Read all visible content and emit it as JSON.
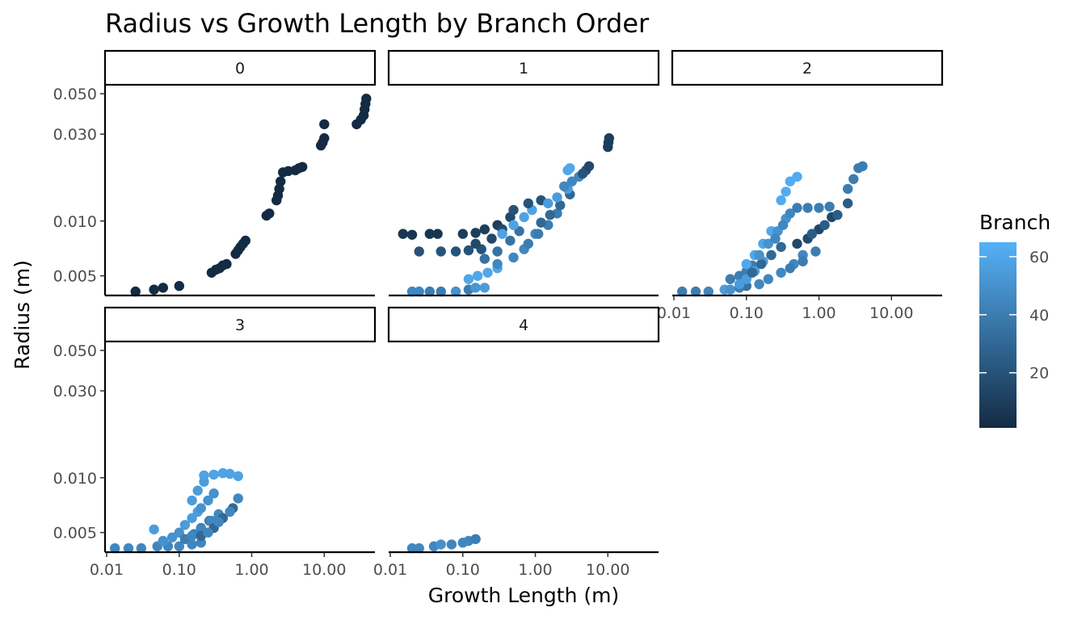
{
  "chart_data": {
    "type": "scatter",
    "title": "Radius vs Growth Length by Branch Order",
    "xlabel": "Growth Length (m)",
    "ylabel": "Radius (m)",
    "x_scale": "log10",
    "y_scale": "log10",
    "xlim": [
      0.0095,
      50
    ],
    "ylim": [
      0.0039,
      0.056
    ],
    "x_ticks": [
      0.01,
      0.1,
      1,
      10
    ],
    "x_tick_labels": [
      "0.01",
      "0.10",
      "1.00",
      "10.00"
    ],
    "y_ticks": [
      0.005,
      0.01,
      0.03,
      0.05
    ],
    "y_tick_labels": [
      "0.005",
      "0.010",
      "0.030",
      "0.050"
    ],
    "facet_by": "Branch Order",
    "grid": false,
    "legend": {
      "title": "Branch",
      "type": "colorbar",
      "range": [
        1,
        65
      ],
      "ticks": [
        20,
        40,
        60
      ],
      "tick_labels": [
        "20",
        "40",
        "60"
      ],
      "low_color": "#132B43",
      "high_color": "#56B1F7",
      "placement": "right"
    },
    "panels": [
      {
        "label": "0",
        "points": [
          [
            0.025,
            0.0041,
            1
          ],
          [
            0.045,
            0.0042,
            1
          ],
          [
            0.06,
            0.0043,
            1
          ],
          [
            0.1,
            0.0044,
            1
          ],
          [
            0.28,
            0.0052,
            1
          ],
          [
            0.32,
            0.0054,
            1
          ],
          [
            0.36,
            0.0055,
            1
          ],
          [
            0.4,
            0.0057,
            1
          ],
          [
            0.45,
            0.0058,
            1
          ],
          [
            0.6,
            0.0066,
            1
          ],
          [
            0.65,
            0.0069,
            1
          ],
          [
            0.7,
            0.0072,
            1
          ],
          [
            0.76,
            0.0075,
            1
          ],
          [
            0.82,
            0.0078,
            1
          ],
          [
            1.6,
            0.0107,
            1
          ],
          [
            1.75,
            0.011,
            1
          ],
          [
            2.2,
            0.013,
            1
          ],
          [
            2.3,
            0.0138,
            1
          ],
          [
            2.4,
            0.015,
            1
          ],
          [
            2.5,
            0.0165,
            1
          ],
          [
            2.7,
            0.0185,
            1
          ],
          [
            3.2,
            0.0188,
            1
          ],
          [
            4,
            0.019,
            1
          ],
          [
            4.5,
            0.0195,
            1
          ],
          [
            5,
            0.0198,
            1
          ],
          [
            9,
            0.026,
            1
          ],
          [
            9.5,
            0.027,
            1
          ],
          [
            10,
            0.0285,
            1
          ],
          [
            10,
            0.034,
            1
          ],
          [
            28,
            0.034,
            1
          ],
          [
            32,
            0.036,
            1
          ],
          [
            35,
            0.038,
            1
          ],
          [
            36,
            0.041,
            1
          ],
          [
            37,
            0.044,
            1
          ],
          [
            38,
            0.047,
            1
          ]
        ]
      },
      {
        "label": "1",
        "points": [
          [
            0.015,
            0.0085,
            6
          ],
          [
            0.02,
            0.0084,
            6
          ],
          [
            0.035,
            0.0085,
            6
          ],
          [
            0.045,
            0.0085,
            6
          ],
          [
            0.02,
            0.0041,
            45
          ],
          [
            0.025,
            0.0041,
            45
          ],
          [
            0.035,
            0.0041,
            40
          ],
          [
            0.05,
            0.0041,
            40
          ],
          [
            0.08,
            0.0041,
            50
          ],
          [
            0.12,
            0.0042,
            40
          ],
          [
            0.15,
            0.0043,
            52
          ],
          [
            0.2,
            0.0043,
            55
          ],
          [
            0.025,
            0.0068,
            20
          ],
          [
            0.05,
            0.0068,
            20
          ],
          [
            0.08,
            0.0068,
            20
          ],
          [
            0.12,
            0.0069,
            20
          ],
          [
            0.18,
            0.007,
            20
          ],
          [
            0.1,
            0.0085,
            10
          ],
          [
            0.15,
            0.0086,
            10
          ],
          [
            0.2,
            0.009,
            10
          ],
          [
            0.3,
            0.0095,
            10
          ],
          [
            0.12,
            0.0048,
            60
          ],
          [
            0.16,
            0.005,
            60
          ],
          [
            0.22,
            0.0052,
            60
          ],
          [
            0.3,
            0.0055,
            60
          ],
          [
            0.15,
            0.0075,
            15
          ],
          [
            0.25,
            0.008,
            15
          ],
          [
            0.35,
            0.009,
            15
          ],
          [
            0.45,
            0.0105,
            15
          ],
          [
            0.2,
            0.0062,
            35
          ],
          [
            0.3,
            0.0068,
            35
          ],
          [
            0.45,
            0.0078,
            35
          ],
          [
            0.6,
            0.0088,
            35
          ],
          [
            0.3,
            0.0058,
            45
          ],
          [
            0.5,
            0.0063,
            45
          ],
          [
            0.7,
            0.007,
            45
          ],
          [
            1.0,
            0.0085,
            45
          ],
          [
            0.35,
            0.0085,
            58
          ],
          [
            0.5,
            0.0095,
            58
          ],
          [
            0.7,
            0.0105,
            58
          ],
          [
            0.9,
            0.0115,
            58
          ],
          [
            0.5,
            0.0115,
            20
          ],
          [
            0.8,
            0.0125,
            20
          ],
          [
            1.2,
            0.013,
            20
          ],
          [
            0.8,
            0.0075,
            40
          ],
          [
            1.1,
            0.0085,
            40
          ],
          [
            1.5,
            0.0095,
            40
          ],
          [
            2.0,
            0.011,
            40
          ],
          [
            1.2,
            0.0098,
            30
          ],
          [
            1.6,
            0.0108,
            30
          ],
          [
            2.2,
            0.0122,
            30
          ],
          [
            3.0,
            0.014,
            30
          ],
          [
            1.5,
            0.0125,
            55
          ],
          [
            2.0,
            0.0135,
            55
          ],
          [
            2.8,
            0.015,
            55
          ],
          [
            2.5,
            0.0155,
            45
          ],
          [
            3.2,
            0.0165,
            45
          ],
          [
            4.0,
            0.0175,
            45
          ],
          [
            2.8,
            0.019,
            60
          ],
          [
            3.0,
            0.0195,
            60
          ],
          [
            4.5,
            0.0182,
            20
          ],
          [
            5,
            0.019,
            20
          ],
          [
            5.5,
            0.02,
            15
          ],
          [
            10,
            0.0255,
            10
          ],
          [
            10.2,
            0.027,
            10
          ],
          [
            10.4,
            0.0285,
            10
          ]
        ]
      },
      {
        "label": "2",
        "points": [
          [
            0.013,
            0.0041,
            40
          ],
          [
            0.02,
            0.0041,
            40
          ],
          [
            0.03,
            0.0041,
            45
          ],
          [
            0.05,
            0.0042,
            55
          ],
          [
            0.06,
            0.0042,
            50
          ],
          [
            0.08,
            0.0043,
            40
          ],
          [
            0.1,
            0.0044,
            35
          ],
          [
            0.15,
            0.0045,
            45
          ],
          [
            0.06,
            0.0048,
            40
          ],
          [
            0.08,
            0.005,
            40
          ],
          [
            0.1,
            0.0053,
            40
          ],
          [
            0.12,
            0.0057,
            40
          ],
          [
            0.08,
            0.0045,
            55
          ],
          [
            0.1,
            0.0048,
            55
          ],
          [
            0.13,
            0.0053,
            55
          ],
          [
            0.17,
            0.006,
            55
          ],
          [
            0.1,
            0.0058,
            60
          ],
          [
            0.13,
            0.0065,
            60
          ],
          [
            0.17,
            0.0075,
            60
          ],
          [
            0.22,
            0.0088,
            60
          ],
          [
            0.12,
            0.0052,
            30
          ],
          [
            0.16,
            0.0058,
            30
          ],
          [
            0.22,
            0.0065,
            30
          ],
          [
            0.3,
            0.0072,
            30
          ],
          [
            0.15,
            0.0065,
            50
          ],
          [
            0.2,
            0.0075,
            50
          ],
          [
            0.27,
            0.0088,
            50
          ],
          [
            0.35,
            0.0103,
            50
          ],
          [
            0.2,
            0.0048,
            45
          ],
          [
            0.3,
            0.0052,
            45
          ],
          [
            0.45,
            0.0058,
            45
          ],
          [
            0.6,
            0.0065,
            45
          ],
          [
            0.25,
            0.008,
            45
          ],
          [
            0.32,
            0.0095,
            45
          ],
          [
            0.4,
            0.011,
            45
          ],
          [
            0.5,
            0.0118,
            40
          ],
          [
            0.7,
            0.0118,
            40
          ],
          [
            1.0,
            0.0118,
            40
          ],
          [
            1.4,
            0.012,
            40
          ],
          [
            0.3,
            0.013,
            62
          ],
          [
            0.35,
            0.0145,
            62
          ],
          [
            0.4,
            0.0165,
            62
          ],
          [
            0.5,
            0.0175,
            62
          ],
          [
            0.5,
            0.0075,
            15
          ],
          [
            0.7,
            0.008,
            15
          ],
          [
            1.0,
            0.009,
            15
          ],
          [
            1.5,
            0.0105,
            15
          ],
          [
            0.4,
            0.0055,
            40
          ],
          [
            0.6,
            0.006,
            40
          ],
          [
            0.9,
            0.0068,
            40
          ],
          [
            0.8,
            0.0085,
            25
          ],
          [
            1.2,
            0.0095,
            25
          ],
          [
            1.8,
            0.0108,
            25
          ],
          [
            2.5,
            0.0125,
            25
          ],
          [
            2.5,
            0.015,
            40
          ],
          [
            3.0,
            0.017,
            40
          ],
          [
            3.5,
            0.0195,
            40
          ],
          [
            4.0,
            0.02,
            40
          ]
        ]
      },
      {
        "label": "3",
        "points": [
          [
            0.013,
            0.0041,
            45
          ],
          [
            0.02,
            0.0041,
            45
          ],
          [
            0.03,
            0.0041,
            45
          ],
          [
            0.05,
            0.0042,
            45
          ],
          [
            0.07,
            0.0042,
            45
          ],
          [
            0.1,
            0.0042,
            45
          ],
          [
            0.15,
            0.0043,
            45
          ],
          [
            0.2,
            0.0044,
            45
          ],
          [
            0.045,
            0.0052,
            55
          ],
          [
            0.06,
            0.0045,
            50
          ],
          [
            0.08,
            0.0047,
            50
          ],
          [
            0.1,
            0.005,
            50
          ],
          [
            0.12,
            0.0055,
            55
          ],
          [
            0.15,
            0.006,
            55
          ],
          [
            0.18,
            0.0065,
            55
          ],
          [
            0.12,
            0.0046,
            40
          ],
          [
            0.16,
            0.0049,
            40
          ],
          [
            0.2,
            0.0053,
            40
          ],
          [
            0.26,
            0.0058,
            40
          ],
          [
            0.15,
            0.0048,
            45
          ],
          [
            0.2,
            0.0052,
            45
          ],
          [
            0.28,
            0.0058,
            45
          ],
          [
            0.35,
            0.0063,
            45
          ],
          [
            0.2,
            0.0048,
            30
          ],
          [
            0.3,
            0.0053,
            30
          ],
          [
            0.4,
            0.006,
            30
          ],
          [
            0.55,
            0.0068,
            30
          ],
          [
            0.2,
            0.0068,
            50
          ],
          [
            0.25,
            0.0075,
            50
          ],
          [
            0.3,
            0.0082,
            50
          ],
          [
            0.25,
            0.005,
            45
          ],
          [
            0.35,
            0.0057,
            45
          ],
          [
            0.5,
            0.0065,
            45
          ],
          [
            0.65,
            0.0077,
            45
          ],
          [
            0.15,
            0.0075,
            55
          ],
          [
            0.18,
            0.0085,
            55
          ],
          [
            0.22,
            0.0095,
            55
          ],
          [
            0.22,
            0.0103,
            58
          ],
          [
            0.3,
            0.0104,
            58
          ],
          [
            0.4,
            0.0106,
            58
          ],
          [
            0.5,
            0.0105,
            58
          ],
          [
            0.65,
            0.0102,
            58
          ]
        ]
      },
      {
        "label": "4",
        "points": [
          [
            0.02,
            0.0041,
            45
          ],
          [
            0.025,
            0.0041,
            45
          ],
          [
            0.04,
            0.0042,
            45
          ],
          [
            0.05,
            0.0043,
            50
          ],
          [
            0.07,
            0.0043,
            45
          ],
          [
            0.1,
            0.0044,
            45
          ],
          [
            0.12,
            0.0045,
            45
          ],
          [
            0.15,
            0.0046,
            40
          ]
        ]
      }
    ]
  }
}
